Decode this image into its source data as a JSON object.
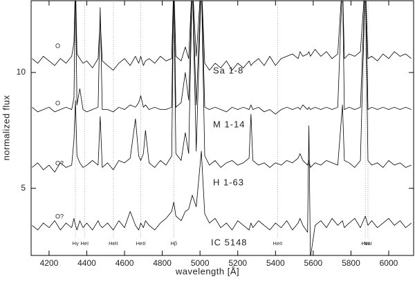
{
  "chart_data": {
    "type": "line",
    "xlabel": "wavelength [Å]",
    "ylabel": "normalized flux",
    "xlim": [
      4105,
      6132
    ],
    "ylim": [
      2.1,
      13.1
    ],
    "xticks": [
      4200,
      4400,
      4600,
      4800,
      5000,
      5200,
      5400,
      5600,
      5800,
      6000
    ],
    "yticks": [
      5,
      10
    ],
    "x": [
      4110,
      4140,
      4170,
      4200,
      4230,
      4260,
      4290,
      4320,
      4332,
      4340,
      4348,
      4363,
      4380,
      4400,
      4430,
      4460,
      4471,
      4482,
      4510,
      4540,
      4570,
      4600,
      4630,
      4658,
      4675,
      4686,
      4700,
      4711,
      4730,
      4760,
      4790,
      4820,
      4850,
      4861,
      4872,
      4900,
      4922,
      4940,
      4959,
      4980,
      5007,
      5025,
      5050,
      5080,
      5110,
      5140,
      5170,
      5200,
      5230,
      5260,
      5270,
      5280,
      5310,
      5340,
      5370,
      5400,
      5430,
      5460,
      5490,
      5520,
      5530,
      5545,
      5570,
      5577,
      5585,
      5610,
      5640,
      5670,
      5700,
      5730,
      5755,
      5765,
      5790,
      5820,
      5850,
      5876,
      5890,
      5910,
      5940,
      5970,
      6000,
      6030,
      6060,
      6090,
      6120
    ],
    "series": [
      {
        "name": "Sa 1-8",
        "annotation": "O",
        "color": "#000000",
        "values": [
          10.6,
          10.4,
          10.7,
          10.5,
          10.3,
          10.6,
          10.4,
          10.7,
          11.3,
          14,
          10.8,
          10.6,
          10.4,
          10.5,
          10.2,
          10.6,
          12.3,
          10.5,
          10.3,
          10.1,
          10.4,
          10.6,
          10.3,
          10.7,
          10.4,
          10.7,
          10.3,
          10.5,
          10.6,
          10.4,
          10.7,
          10.5,
          10.6,
          14,
          10.7,
          10.5,
          11.1,
          10.6,
          14,
          10.7,
          14,
          10.4,
          10.1,
          10.4,
          10.2,
          10.5,
          10.1,
          10.4,
          10.2,
          10.5,
          10.3,
          10.4,
          10.6,
          10.3,
          10.7,
          10.3,
          10.6,
          10.7,
          10.8,
          10.6,
          10.9,
          10.7,
          10.8,
          10.9,
          10.7,
          11.0,
          10.7,
          10.9,
          10.6,
          10.8,
          14,
          10.6,
          10.8,
          10.7,
          10.9,
          14,
          10.6,
          10.7,
          10.5,
          10.8,
          10.6,
          10.9,
          10.7,
          10.8,
          10.6
        ]
      },
      {
        "name": "M 1-14",
        "annotation": "O",
        "color": "#000000",
        "values": [
          8.5,
          8.3,
          8.4,
          8.5,
          8.3,
          8.4,
          8.5,
          8.4,
          8.9,
          14,
          8.6,
          9.3,
          8.4,
          8.3,
          8.4,
          8.5,
          12.8,
          8.4,
          8.4,
          8.3,
          8.5,
          8.4,
          8.6,
          8.5,
          8.7,
          9.0,
          8.5,
          8.6,
          8.4,
          8.5,
          8.4,
          8.4,
          8.5,
          14,
          8.5,
          8.7,
          10.0,
          8.8,
          14,
          8.6,
          14,
          8.5,
          8.4,
          8.5,
          8.4,
          8.3,
          8.5,
          8.4,
          8.5,
          8.4,
          8.6,
          8.4,
          8.5,
          8.3,
          8.4,
          8.2,
          8.4,
          8.5,
          8.4,
          8.5,
          8.4,
          8.6,
          8.4,
          8.5,
          8.4,
          8.5,
          8.4,
          8.5,
          8.4,
          8.5,
          14,
          8.4,
          8.5,
          8.4,
          8.5,
          14,
          8.4,
          8.5,
          8.4,
          8.5,
          8.4,
          8.5,
          8.4,
          8.5,
          8.4
        ]
      },
      {
        "name": "H 1-63",
        "annotation": "O?",
        "color": "#000000",
        "values": [
          5.9,
          6.1,
          5.8,
          6.0,
          5.7,
          6.1,
          5.9,
          6.0,
          7.1,
          8.8,
          6.4,
          6.1,
          5.9,
          6.0,
          6.2,
          6.0,
          8.1,
          5.9,
          6.1,
          5.8,
          6.2,
          6.1,
          6.3,
          8.0,
          6.4,
          6.2,
          6.5,
          7.5,
          6.1,
          5.9,
          6.2,
          6.0,
          6.4,
          14,
          6.5,
          6.2,
          7.4,
          6.5,
          14,
          6.6,
          14,
          6.4,
          6.0,
          6.2,
          5.9,
          6.1,
          6.2,
          6.0,
          6.1,
          6.3,
          8.2,
          6.2,
          6.0,
          6.1,
          5.9,
          6.1,
          6.0,
          6.2,
          6.1,
          6.3,
          6.5,
          6.2,
          6.0,
          6.2,
          5.9,
          6.1,
          6.0,
          6.2,
          6.1,
          6.0,
          8.6,
          6.2,
          6.1,
          5.9,
          6.2,
          14,
          6.2,
          6.0,
          6.1,
          5.9,
          6.2,
          6.0,
          6.1,
          5.9,
          6.0
        ]
      },
      {
        "name": "IC 5148",
        "annotation": "O?",
        "color": "#000000",
        "values": [
          3.4,
          3.2,
          3.5,
          3.3,
          3.6,
          3.2,
          3.5,
          3.3,
          3.7,
          3.4,
          3.2,
          3.6,
          3.3,
          3.5,
          3.2,
          3.6,
          3.4,
          3.3,
          3.5,
          3.2,
          3.6,
          3.3,
          4.0,
          3.4,
          3.2,
          3.5,
          3.3,
          3.6,
          3.4,
          3.2,
          3.5,
          3.7,
          4.0,
          4.4,
          3.8,
          3.6,
          4.0,
          4.1,
          4.7,
          4.2,
          6.6,
          3.9,
          3.5,
          3.7,
          3.3,
          3.5,
          3.2,
          3.6,
          3.4,
          3.2,
          3.5,
          3.3,
          3.6,
          3.4,
          3.2,
          3.5,
          3.3,
          3.6,
          3.2,
          3.5,
          3.7,
          3.4,
          3.1,
          7.7,
          2.0,
          3.4,
          3.6,
          3.3,
          3.7,
          3.4,
          3.6,
          3.3,
          3.5,
          3.7,
          3.3,
          3.8,
          3.4,
          3.6,
          3.3,
          3.5,
          3.7,
          3.4,
          3.6,
          3.3,
          3.5
        ]
      }
    ],
    "reference_lines": [
      {
        "x": 4340,
        "label": "Hγ"
      },
      {
        "x": 4388,
        "label": "HeI"
      },
      {
        "x": 4541,
        "label": "HeII"
      },
      {
        "x": 4686,
        "label": "HeII"
      },
      {
        "x": 4861,
        "label": "Hβ"
      },
      {
        "x": 5411,
        "label": "HeII"
      },
      {
        "x": 5876,
        "label": "HeI"
      },
      {
        "x": 5890,
        "label": "NaI"
      }
    ]
  }
}
